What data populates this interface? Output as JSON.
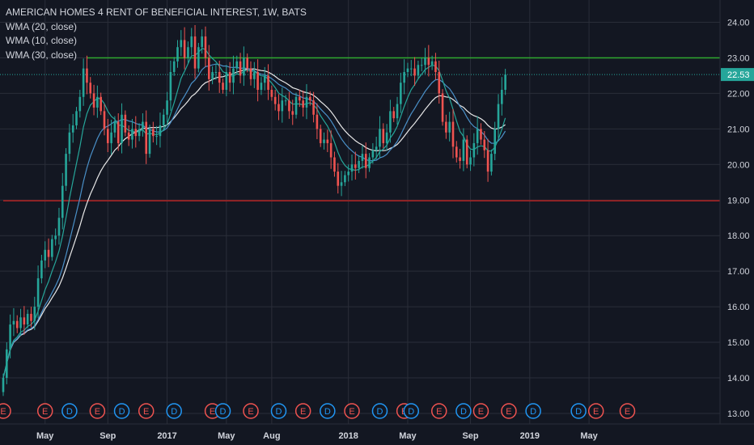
{
  "legend": {
    "title": "AMERICAN HOMES 4 RENT OF BENEFICIAL INTEREST, 1W, BATS",
    "studies": [
      "WMA (20, close)",
      "WMA (10, close)",
      "WMA (30, close)"
    ]
  },
  "colors": {
    "background": "#131722",
    "grid": "#2a2e39",
    "up": "#26a69a",
    "down": "#ef5350",
    "resistance": "#2ea82e",
    "support": "#b22222",
    "wma10": "#26a69a",
    "wma20": "#4a90c8",
    "wma30": "#e8e8e8",
    "price_tag": "#26a69a",
    "event_earnings": "#ef5350",
    "event_dividend": "#2196f3"
  },
  "chart_data": {
    "type": "candlestick",
    "symbol": "AMERICAN HOMES 4 RENT OF BENEFICIAL INTEREST",
    "interval": "1W",
    "exchange": "BATS",
    "ylim": [
      12.8,
      24.35
    ],
    "y_ticks": [
      "13.00",
      "14.00",
      "15.00",
      "16.00",
      "17.00",
      "18.00",
      "19.00",
      "20.00",
      "21.00",
      "22.00",
      "23.00",
      "24.00"
    ],
    "x_ticks": [
      {
        "label": "May",
        "week": 12
      },
      {
        "label": "Sep",
        "week": 30
      },
      {
        "label": "2017",
        "week": 47
      },
      {
        "label": "May",
        "week": 64
      },
      {
        "label": "Aug",
        "week": 77
      },
      {
        "label": "2018",
        "week": 99
      },
      {
        "label": "May",
        "week": 116
      },
      {
        "label": "Sep",
        "week": 134
      },
      {
        "label": "2019",
        "week": 151
      },
      {
        "label": "May",
        "week": 168
      }
    ],
    "last_price": 22.53,
    "horizontal_lines": [
      {
        "name": "resistance",
        "value": 23.0,
        "from_week": 24
      },
      {
        "name": "support",
        "value": 18.98,
        "from_week": 0
      }
    ],
    "closes": [
      14.0,
      14.8,
      15.5,
      15.6,
      15.4,
      15.7,
      15.5,
      15.8,
      15.6,
      16.0,
      16.8,
      17.3,
      17.6,
      17.4,
      17.9,
      18.0,
      18.5,
      19.4,
      20.3,
      20.9,
      21.1,
      21.5,
      21.9,
      22.7,
      22.3,
      22.0,
      21.6,
      21.9,
      21.5,
      21.0,
      20.6,
      20.9,
      21.2,
      20.6,
      21.4,
      20.9,
      20.7,
      21.0,
      20.8,
      21.0,
      21.2,
      20.3,
      21.0,
      20.8,
      20.8,
      21.1,
      21.4,
      21.8,
      22.6,
      22.9,
      23.3,
      23.5,
      23.0,
      23.3,
      23.6,
      22.7,
      23.3,
      23.6,
      23.0,
      22.4,
      22.6,
      22.6,
      22.3,
      22.1,
      22.6,
      22.3,
      22.7,
      22.9,
      22.5,
      23.0,
      22.7,
      22.4,
      22.6,
      22.1,
      22.3,
      22.5,
      22.1,
      21.9,
      21.7,
      21.5,
      21.8,
      21.8,
      21.5,
      21.4,
      21.9,
      21.8,
      21.6,
      21.9,
      21.8,
      21.4,
      21.0,
      20.6,
      20.7,
      20.6,
      20.2,
      19.8,
      19.4,
      19.5,
      19.7,
      19.8,
      20.0,
      19.9,
      20.1,
      20.3,
      19.9,
      20.2,
      20.4,
      20.5,
      21.0,
      20.6,
      20.9,
      21.5,
      21.3,
      21.7,
      22.3,
      22.6,
      22.7,
      22.7,
      22.5,
      22.8,
      22.8,
      23.0,
      22.8,
      22.9,
      22.6,
      22.0,
      21.2,
      20.9,
      21.2,
      20.5,
      20.2,
      20.1,
      20.7,
      20.0,
      20.2,
      20.6,
      21.0,
      20.7,
      20.4,
      19.8,
      20.3,
      21.0,
      21.7,
      22.1,
      22.53
    ]
  },
  "events": [
    {
      "label": "E",
      "kind": "earnings",
      "week": 0
    },
    {
      "label": "E",
      "kind": "earnings",
      "week": 12
    },
    {
      "label": "D",
      "kind": "dividend",
      "week": 19
    },
    {
      "label": "E",
      "kind": "earnings",
      "week": 27
    },
    {
      "label": "D",
      "kind": "dividend",
      "week": 34
    },
    {
      "label": "E",
      "kind": "earnings",
      "week": 41
    },
    {
      "label": "D",
      "kind": "dividend",
      "week": 49
    },
    {
      "label": "E",
      "kind": "earnings",
      "week": 60
    },
    {
      "label": "D",
      "kind": "dividend",
      "week": 63
    },
    {
      "label": "E",
      "kind": "earnings",
      "week": 71
    },
    {
      "label": "D",
      "kind": "dividend",
      "week": 79
    },
    {
      "label": "E",
      "kind": "earnings",
      "week": 86
    },
    {
      "label": "D",
      "kind": "dividend",
      "week": 93
    },
    {
      "label": "E",
      "kind": "earnings",
      "week": 100
    },
    {
      "label": "D",
      "kind": "dividend",
      "week": 108
    },
    {
      "label": "E",
      "kind": "earnings",
      "week": 115
    },
    {
      "label": "D",
      "kind": "dividend",
      "week": 117
    },
    {
      "label": "E",
      "kind": "earnings",
      "week": 125
    },
    {
      "label": "D",
      "kind": "dividend",
      "week": 132
    },
    {
      "label": "E",
      "kind": "earnings",
      "week": 137
    },
    {
      "label": "E",
      "kind": "earnings",
      "week": 145
    },
    {
      "label": "D",
      "kind": "dividend",
      "week": 152
    },
    {
      "label": "D",
      "kind": "dividend",
      "week": 165
    },
    {
      "label": "E",
      "kind": "earnings",
      "week": 170
    },
    {
      "label": "E",
      "kind": "earnings",
      "week": 179
    }
  ]
}
